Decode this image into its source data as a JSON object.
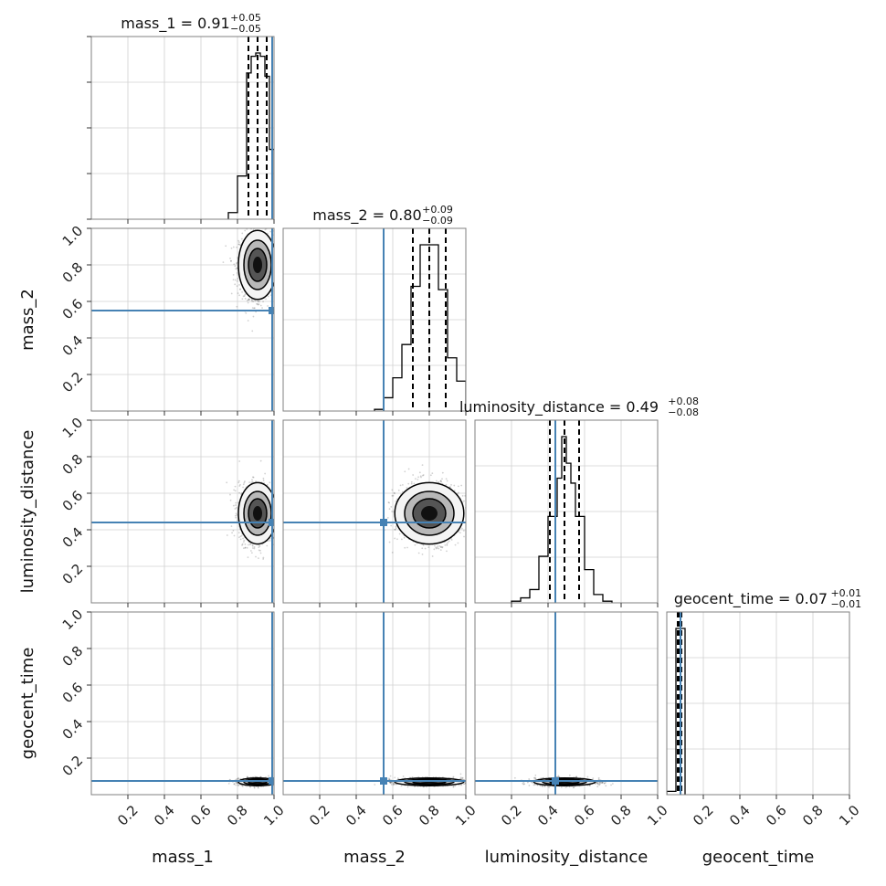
{
  "chart_data": {
    "type": "corner",
    "parameters": [
      "mass_1",
      "mass_2",
      "luminosity_distance",
      "geocent_time"
    ],
    "axis_range": [
      0,
      1
    ],
    "tick_values": [
      0.2,
      0.4,
      0.6,
      0.8,
      1.0
    ],
    "tick_labels": [
      "0.2",
      "0.4",
      "0.6",
      "0.8",
      "1.0"
    ],
    "truth_color": "#4682b4",
    "grid": true,
    "truths": {
      "mass_1": 0.99,
      "mass_2": 0.55,
      "luminosity_distance": 0.44,
      "geocent_time": 0.075
    },
    "summary_titles": [
      {
        "param": "mass_1",
        "label": "mass_1 = 0.91",
        "upper": "+0.05",
        "lower": "−0.05",
        "median": 0.91,
        "plus": 0.05,
        "minus": 0.05
      },
      {
        "param": "mass_2",
        "label": "mass_2 = 0.80",
        "upper": "+0.09",
        "lower": "−0.09",
        "median": 0.8,
        "plus": 0.09,
        "minus": 0.09
      },
      {
        "param": "luminosity_distance",
        "label": "luminosity_distance = 0.49",
        "upper": "+0.08",
        "lower": "−0.08",
        "median": 0.49,
        "plus": 0.08,
        "minus": 0.08
      },
      {
        "param": "geocent_time",
        "label": "geocent_time = 0.07",
        "upper": "+0.01",
        "lower": "−0.01",
        "median": 0.07,
        "plus": 0.01,
        "minus": 0.01
      }
    ],
    "histograms": [
      {
        "param": "mass_1",
        "edges": [
          0.75,
          0.8,
          0.85,
          0.875,
          0.9,
          0.925,
          0.95,
          0.975,
          1.0
        ],
        "heights": [
          0.04,
          0.26,
          0.88,
          0.98,
          1.0,
          0.98,
          0.86,
          0.42
        ]
      },
      {
        "param": "mass_2",
        "edges": [
          0.5,
          0.55,
          0.6,
          0.65,
          0.7,
          0.75,
          0.8,
          0.85,
          0.9,
          0.95,
          1.0
        ],
        "heights": [
          0.01,
          0.08,
          0.2,
          0.4,
          0.75,
          1.0,
          1.0,
          0.73,
          0.32,
          0.18
        ]
      },
      {
        "param": "luminosity_distance",
        "edges": [
          0.2,
          0.25,
          0.3,
          0.35,
          0.4,
          0.45,
          0.475,
          0.5,
          0.525,
          0.55,
          0.6,
          0.65,
          0.7,
          0.75
        ],
        "heights": [
          0.01,
          0.03,
          0.08,
          0.28,
          0.52,
          0.75,
          1.0,
          0.84,
          0.72,
          0.52,
          0.2,
          0.05,
          0.01
        ]
      },
      {
        "param": "geocent_time",
        "edges": [
          0.0,
          0.05,
          0.1
        ],
        "heights": [
          0.02,
          1.0
        ]
      }
    ],
    "posteriors_2d": [
      {
        "x": "mass_1",
        "y": "mass_2",
        "center": [
          0.91,
          0.8
        ],
        "sigma": [
          0.05,
          0.09
        ]
      },
      {
        "x": "mass_1",
        "y": "luminosity_distance",
        "center": [
          0.91,
          0.49
        ],
        "sigma": [
          0.05,
          0.08
        ]
      },
      {
        "x": "mass_2",
        "y": "luminosity_distance",
        "center": [
          0.8,
          0.49
        ],
        "sigma": [
          0.09,
          0.08
        ]
      },
      {
        "x": "mass_1",
        "y": "geocent_time",
        "center": [
          0.91,
          0.07
        ],
        "sigma": [
          0.05,
          0.01
        ]
      },
      {
        "x": "mass_2",
        "y": "geocent_time",
        "center": [
          0.8,
          0.07
        ],
        "sigma": [
          0.09,
          0.01
        ]
      },
      {
        "x": "luminosity_distance",
        "y": "geocent_time",
        "center": [
          0.49,
          0.07
        ],
        "sigma": [
          0.08,
          0.01
        ]
      }
    ]
  }
}
